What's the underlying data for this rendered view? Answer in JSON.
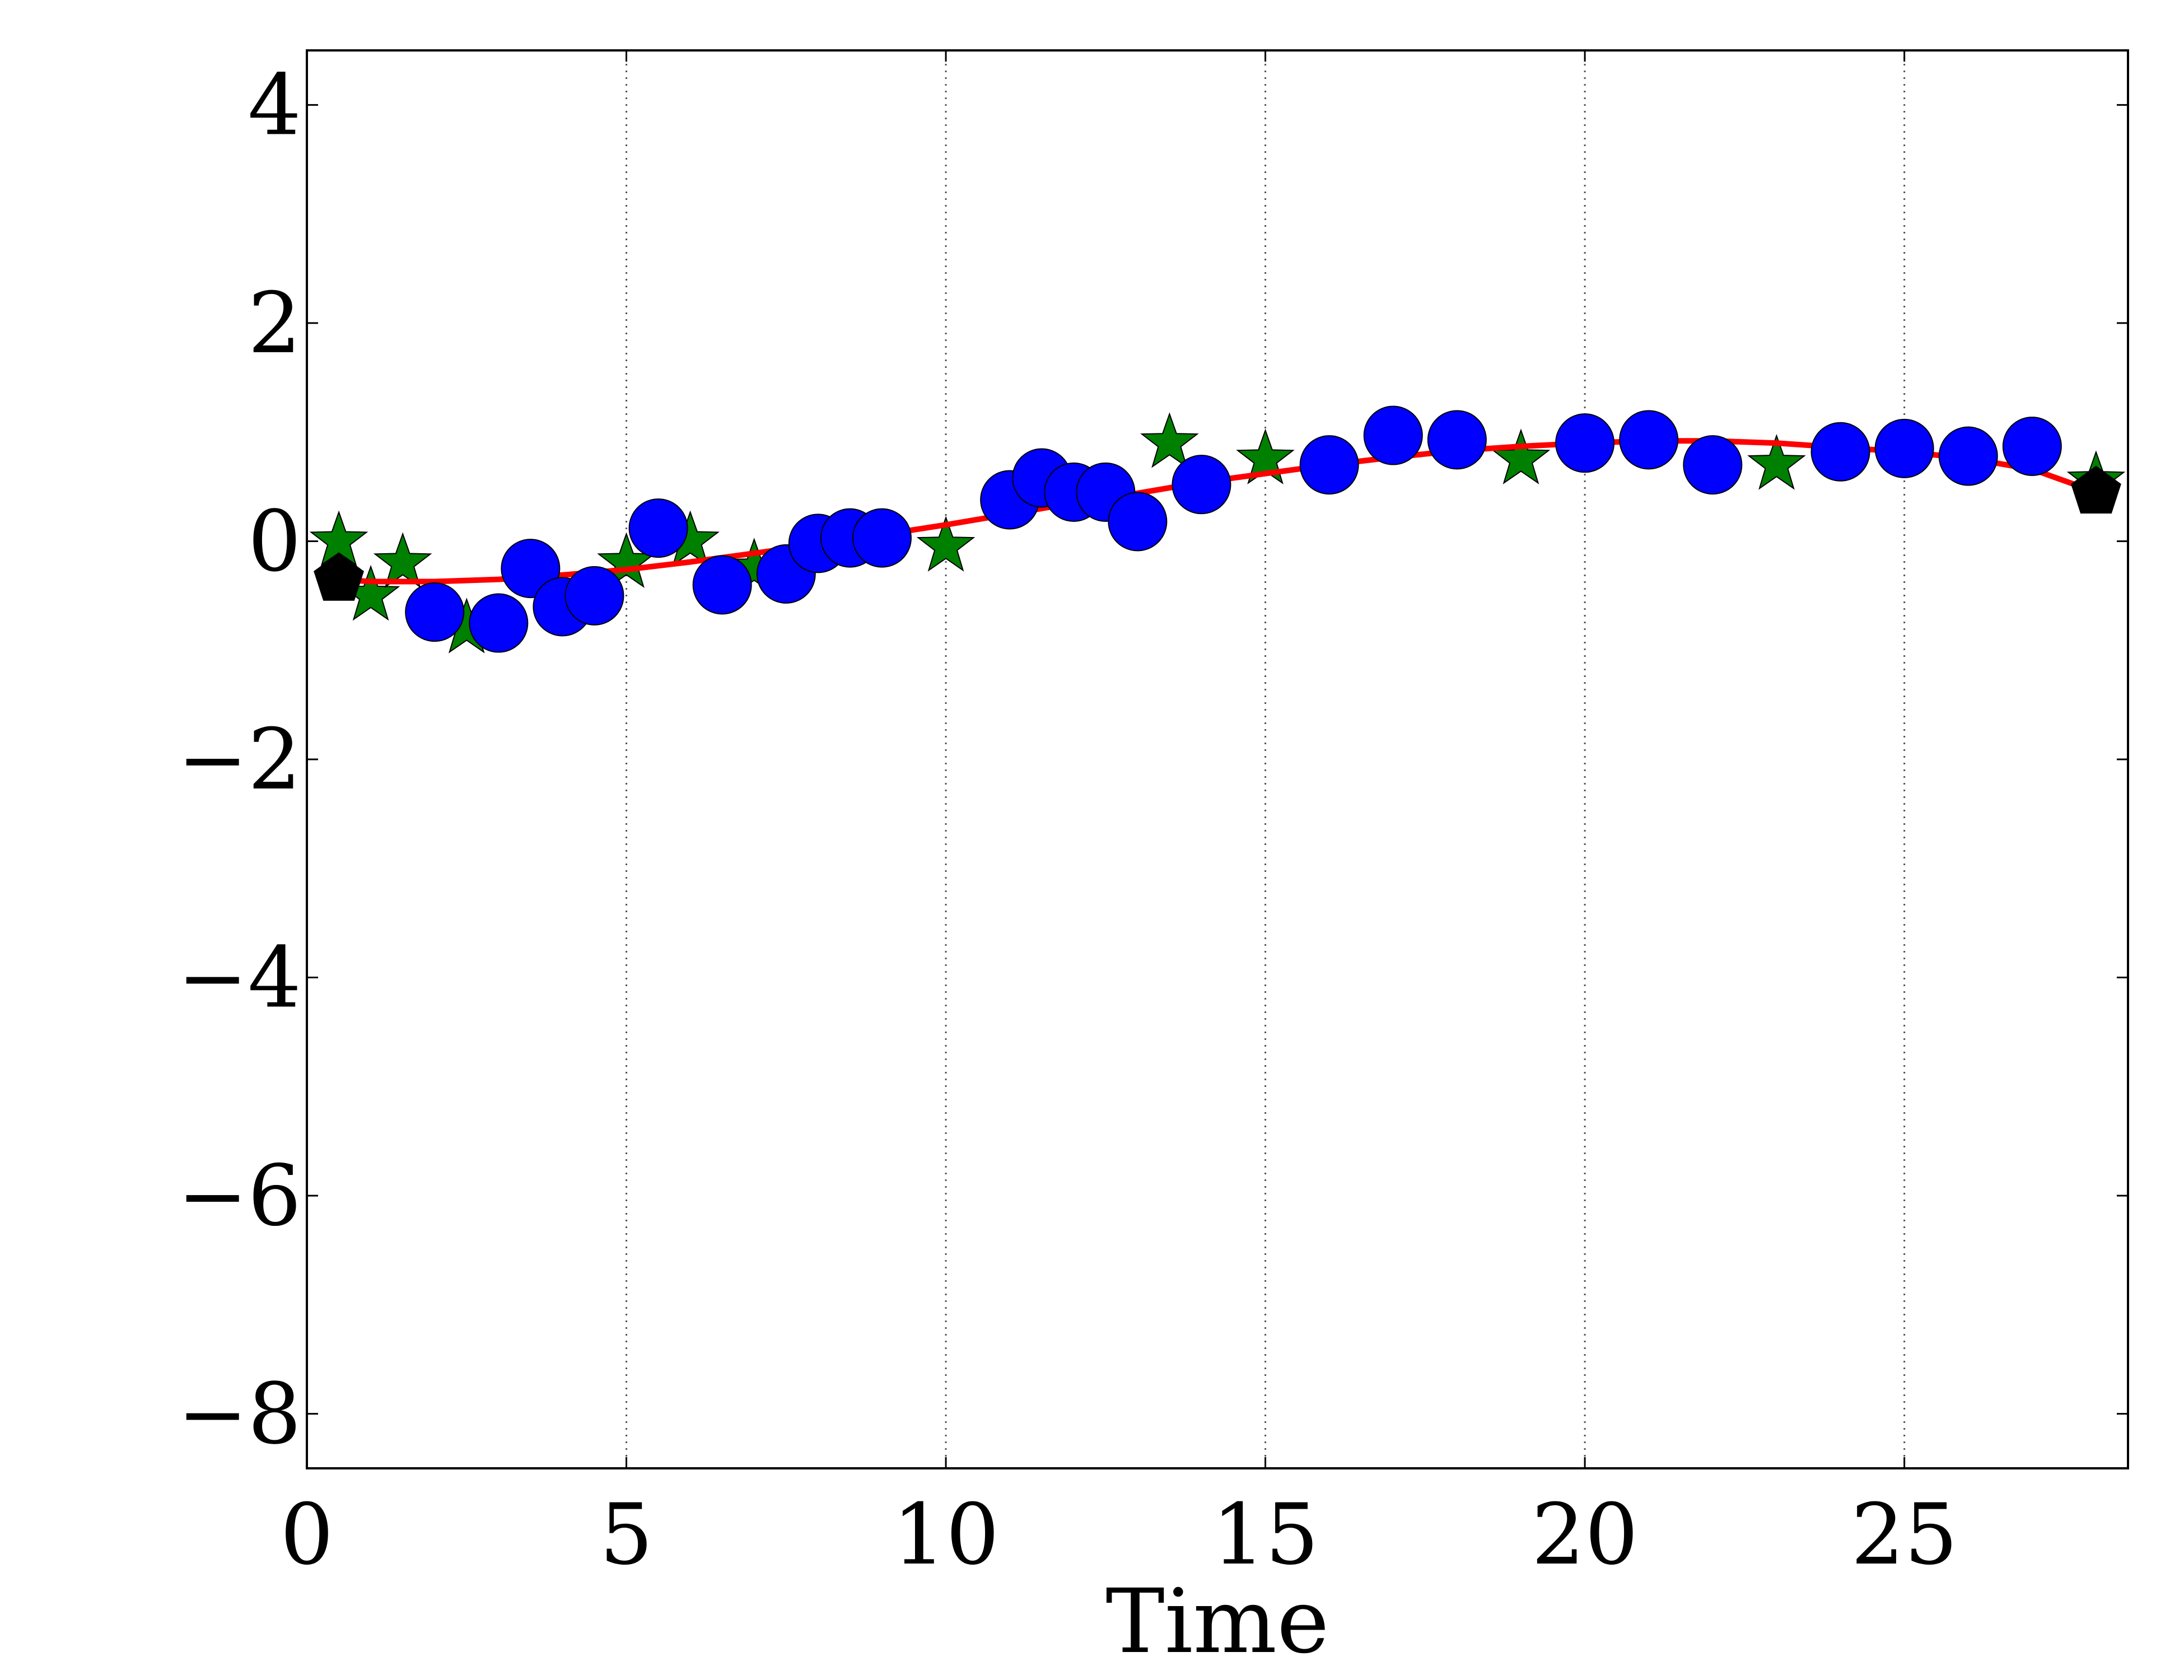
{
  "chart_data": {
    "type": "scatter",
    "title": "",
    "xlabel": "Time",
    "ylabel": "",
    "xlim": [
      0,
      28.5
    ],
    "ylim": [
      -8.5,
      4.5
    ],
    "xticks": [
      0,
      5,
      10,
      15,
      20,
      25
    ],
    "yticks": [
      4,
      2,
      0,
      -2,
      -4,
      -6,
      -8
    ],
    "xtick_labels": [
      "0",
      "5",
      "10",
      "15",
      "20",
      "25"
    ],
    "ytick_labels": [
      "4",
      "2",
      "0",
      "−2",
      "−4",
      "−6",
      "−8"
    ],
    "grid": "vertical dotted at x ticks",
    "legend": "none",
    "series": [
      {
        "marker": "circle",
        "color": "#0000ff",
        "x": [
          2,
          3,
          3.5,
          4,
          4.5,
          5.5,
          6.5,
          7.5,
          8,
          8.5,
          9,
          11,
          11.5,
          12,
          12.5,
          13,
          14,
          16,
          17,
          18,
          20,
          21,
          22,
          24,
          25,
          26,
          27
        ],
        "y": [
          -0.65,
          -0.75,
          -0.25,
          -0.6,
          -0.5,
          0.12,
          -0.4,
          -0.3,
          -0.02,
          0.03,
          0.03,
          0.38,
          0.58,
          0.45,
          0.45,
          0.18,
          0.52,
          0.7,
          0.97,
          0.93,
          0.9,
          0.93,
          0.7,
          0.82,
          0.85,
          0.78,
          0.87
        ]
      },
      {
        "marker": "star",
        "color": "#008000",
        "x": [
          0.5,
          1,
          1.5,
          2.5,
          5,
          6,
          7,
          10,
          13.5,
          15,
          19,
          23,
          28
        ],
        "y": [
          0.0,
          -0.5,
          -0.2,
          -0.8,
          -0.2,
          0.0,
          -0.25,
          -0.05,
          0.9,
          0.75,
          0.75,
          0.7,
          0.55
        ]
      },
      {
        "marker": "pentagon",
        "color": "#000000",
        "x": [
          0.5,
          28
        ],
        "y": [
          -0.35,
          0.45
        ]
      },
      {
        "marker": "line",
        "color": "#ff0000",
        "x": [
          0.5,
          1,
          2,
          3,
          4,
          5,
          6,
          7,
          8,
          9,
          10,
          11,
          12,
          13,
          14,
          15,
          16,
          17,
          18,
          19,
          20,
          21,
          22,
          23,
          24,
          25,
          26,
          27,
          28
        ],
        "y": [
          -0.35,
          -0.37,
          -0.37,
          -0.35,
          -0.31,
          -0.26,
          -0.19,
          -0.11,
          -0.03,
          0.06,
          0.15,
          0.25,
          0.35,
          0.44,
          0.54,
          0.62,
          0.7,
          0.77,
          0.83,
          0.87,
          0.9,
          0.92,
          0.92,
          0.9,
          0.86,
          0.82,
          0.76,
          0.66,
          0.45
        ]
      }
    ]
  }
}
